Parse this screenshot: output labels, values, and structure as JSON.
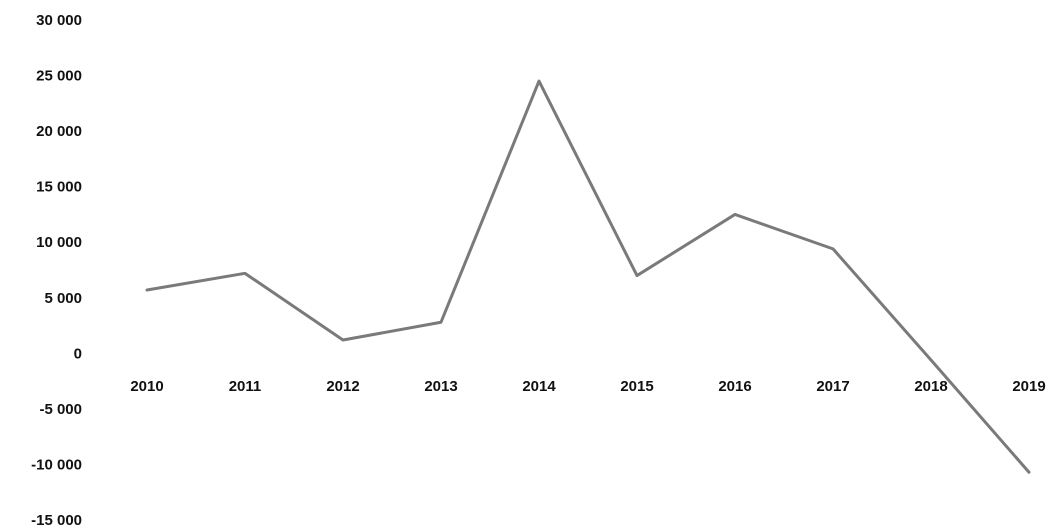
{
  "chart_data": {
    "type": "line",
    "title": "",
    "xlabel": "",
    "ylabel": "",
    "categories": [
      "2010",
      "2011",
      "2012",
      "2013",
      "2014",
      "2015",
      "2016",
      "2017",
      "2018",
      "2019"
    ],
    "series": [
      {
        "values": [
          5700,
          7200,
          1200,
          2800,
          24500,
          7000,
          12500,
          9400,
          -600,
          -10700
        ],
        "color": "#7a7a7a"
      }
    ],
    "ylim": [
      -15000,
      30000
    ],
    "yticks": [
      30000,
      25000,
      20000,
      15000,
      10000,
      5000,
      0,
      -5000,
      -10000,
      -15000
    ],
    "ytick_labels": [
      "30 000",
      "25 000",
      "20 000",
      "15 000",
      "10 000",
      "5 000",
      "0",
      "-5 000",
      "-10 000",
      "-15 000"
    ],
    "grid": false,
    "legend": "none"
  }
}
